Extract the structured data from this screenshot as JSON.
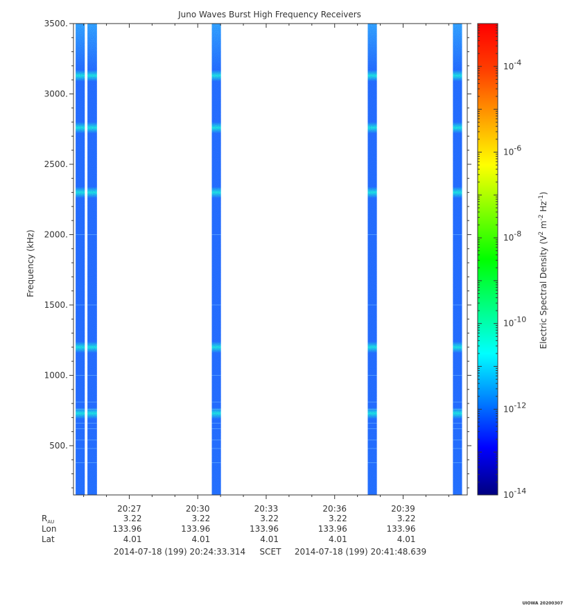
{
  "chart_data": {
    "type": "heatmap",
    "title": "Juno Waves Burst High Frequency Receivers",
    "ylabel": "Frequency (kHz)",
    "ylim": [
      150,
      3500
    ],
    "y_ticks": [
      500,
      1000,
      1500,
      2000,
      2500,
      3000,
      3500
    ],
    "y_tick_labels": [
      "500.",
      "1000.",
      "1500.",
      "2000.",
      "2500.",
      "3000.",
      "3500."
    ],
    "x_range": [
      "20:24:33.314",
      "20:41:48.639"
    ],
    "x_ticks": [
      "20:27",
      "20:30",
      "20:33",
      "20:36",
      "20:39"
    ],
    "colorbar": {
      "label": "Electric Spectral Density (V² m⁻² Hz⁻¹)",
      "label_parts": [
        "Electric Spectral Density (V",
        "2",
        " m",
        "-2",
        " Hz",
        "-1",
        ")"
      ],
      "scale": "log",
      "range": [
        1e-14,
        0.001
      ],
      "ticks": [
        {
          "base": "10",
          "exp": "-4",
          "value": 0.0001
        },
        {
          "base": "10",
          "exp": "-6",
          "value": 1e-06
        },
        {
          "base": "10",
          "exp": "-8",
          "value": 1e-08
        },
        {
          "base": "10",
          "exp": "-10",
          "value": 1e-10
        },
        {
          "base": "10",
          "exp": "-12",
          "value": 1e-12
        },
        {
          "base": "10",
          "exp": "-14",
          "value": 1e-14
        }
      ],
      "colors": [
        "#00007f",
        "#0000ff",
        "#0080ff",
        "#00ffff",
        "#00ff80",
        "#00ff00",
        "#80ff00",
        "#ffff00",
        "#ffa000",
        "#ff4000",
        "#ff0000"
      ]
    },
    "data_blocks": [
      {
        "start": "20:24:39",
        "end": "20:25:03"
      },
      {
        "start": "20:25:10",
        "end": "20:25:35"
      },
      {
        "start": "20:30:37",
        "end": "20:31:01"
      },
      {
        "start": "20:37:27",
        "end": "20:37:51"
      },
      {
        "start": "20:41:11",
        "end": "20:41:35"
      }
    ],
    "emission_bands_khz": [
      730,
      1200,
      2300,
      2760,
      3130
    ],
    "typical_level": "1e-12 to 1e-11",
    "ephemeris": {
      "rows": [
        {
          "label": "R",
          "sub": "AU",
          "values": [
            "3.22",
            "3.22",
            "3.22",
            "3.22",
            "3.22"
          ]
        },
        {
          "label": "Lon",
          "values": [
            "133.96",
            "133.96",
            "133.96",
            "133.96",
            "133.96"
          ]
        },
        {
          "label": "Lat",
          "values": [
            "4.01",
            "4.01",
            "4.01",
            "4.01",
            "4.01"
          ]
        }
      ]
    },
    "time_range_text": {
      "start": "2014-07-18 (199) 20:24:33.314",
      "mid": "SCET",
      "end": "2014-07-18 (199) 20:41:48.639"
    },
    "footer_stamp": "UIOWA 20200307"
  }
}
